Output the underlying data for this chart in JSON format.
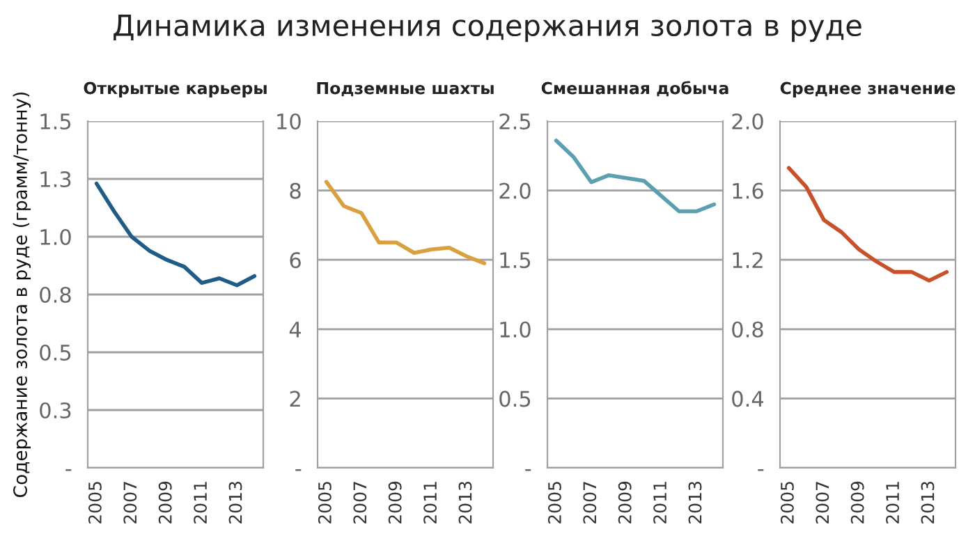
{
  "chart_data": [
    {
      "type": "line",
      "title": "Открытые карьеры",
      "ylabel": "Содержание золота в руде (грамм/тонну)",
      "annotations": [
        "Динамика изменения содержания золота в руде"
      ],
      "categories": [
        "2005",
        null,
        "2007",
        null,
        "2009",
        null,
        "2011",
        null,
        "2013",
        null
      ],
      "series": [
        {
          "color": "#1f5c87",
          "values": [
            1.23,
            1.11,
            1.0,
            0.94,
            0.9,
            0.87,
            0.8,
            0.82,
            0.79,
            0.83
          ]
        }
      ],
      "ylim": [
        0,
        1.5
      ],
      "yticks": [
        {
          "value": 0,
          "label": "-"
        },
        {
          "value": 0.25,
          "label": "0.3"
        },
        {
          "value": 0.5,
          "label": "0.5"
        },
        {
          "value": 0.75,
          "label": "0.8"
        },
        {
          "value": 1.0,
          "label": "1.0"
        },
        {
          "value": 1.25,
          "label": "1.3"
        },
        {
          "value": 1.5,
          "label": "1.5"
        }
      ],
      "grid": "y",
      "legend": false
    },
    {
      "type": "line",
      "title": "Подземные шахты",
      "categories": [
        "2005",
        null,
        "2007",
        null,
        "2009",
        null,
        "2011",
        null,
        "2013",
        null
      ],
      "series": [
        {
          "color": "#d9a040",
          "values": [
            8.25,
            7.55,
            7.35,
            6.5,
            6.5,
            6.2,
            6.3,
            6.35,
            6.1,
            5.9
          ]
        }
      ],
      "ylim": [
        0,
        10
      ],
      "yticks": [
        {
          "value": 0,
          "label": "-"
        },
        2,
        4,
        6,
        8,
        10
      ],
      "grid": "y",
      "legend": false
    },
    {
      "type": "line",
      "title": "Смешанная добыча",
      "categories": [
        "2005",
        null,
        "2007",
        null,
        "2009",
        null,
        "2011",
        null,
        "2013",
        null
      ],
      "series": [
        {
          "color": "#5aa0b0",
          "values": [
            2.36,
            2.24,
            2.06,
            2.11,
            2.09,
            2.07,
            1.96,
            1.85,
            1.85,
            1.9
          ]
        }
      ],
      "ylim": [
        0,
        2.5
      ],
      "yticks": [
        {
          "value": 0,
          "label": "-"
        },
        {
          "value": 0.5,
          "label": "0.5"
        },
        {
          "value": 1.0,
          "label": "1.0"
        },
        {
          "value": 1.5,
          "label": "1.5"
        },
        {
          "value": 2.0,
          "label": "2.0"
        },
        {
          "value": 2.5,
          "label": "2.5"
        }
      ],
      "grid": "y",
      "legend": false
    },
    {
      "type": "line",
      "title": "Среднее значение",
      "categories": [
        "2005",
        null,
        "2007",
        null,
        "2009",
        null,
        "2011",
        null,
        "2013",
        null
      ],
      "series": [
        {
          "color": "#c8502a",
          "values": [
            1.73,
            1.62,
            1.43,
            1.36,
            1.26,
            1.19,
            1.13,
            1.13,
            1.08,
            1.13
          ]
        }
      ],
      "ylim": [
        0,
        2.0
      ],
      "yticks": [
        {
          "value": 0,
          "label": "-"
        },
        {
          "value": 0.4,
          "label": "0.4"
        },
        {
          "value": 0.8,
          "label": "0.8"
        },
        {
          "value": 1.2,
          "label": "1.2"
        },
        {
          "value": 1.6,
          "label": "1.6"
        },
        {
          "value": 2.0,
          "label": "2.0"
        }
      ],
      "grid": "y",
      "legend": false
    }
  ]
}
